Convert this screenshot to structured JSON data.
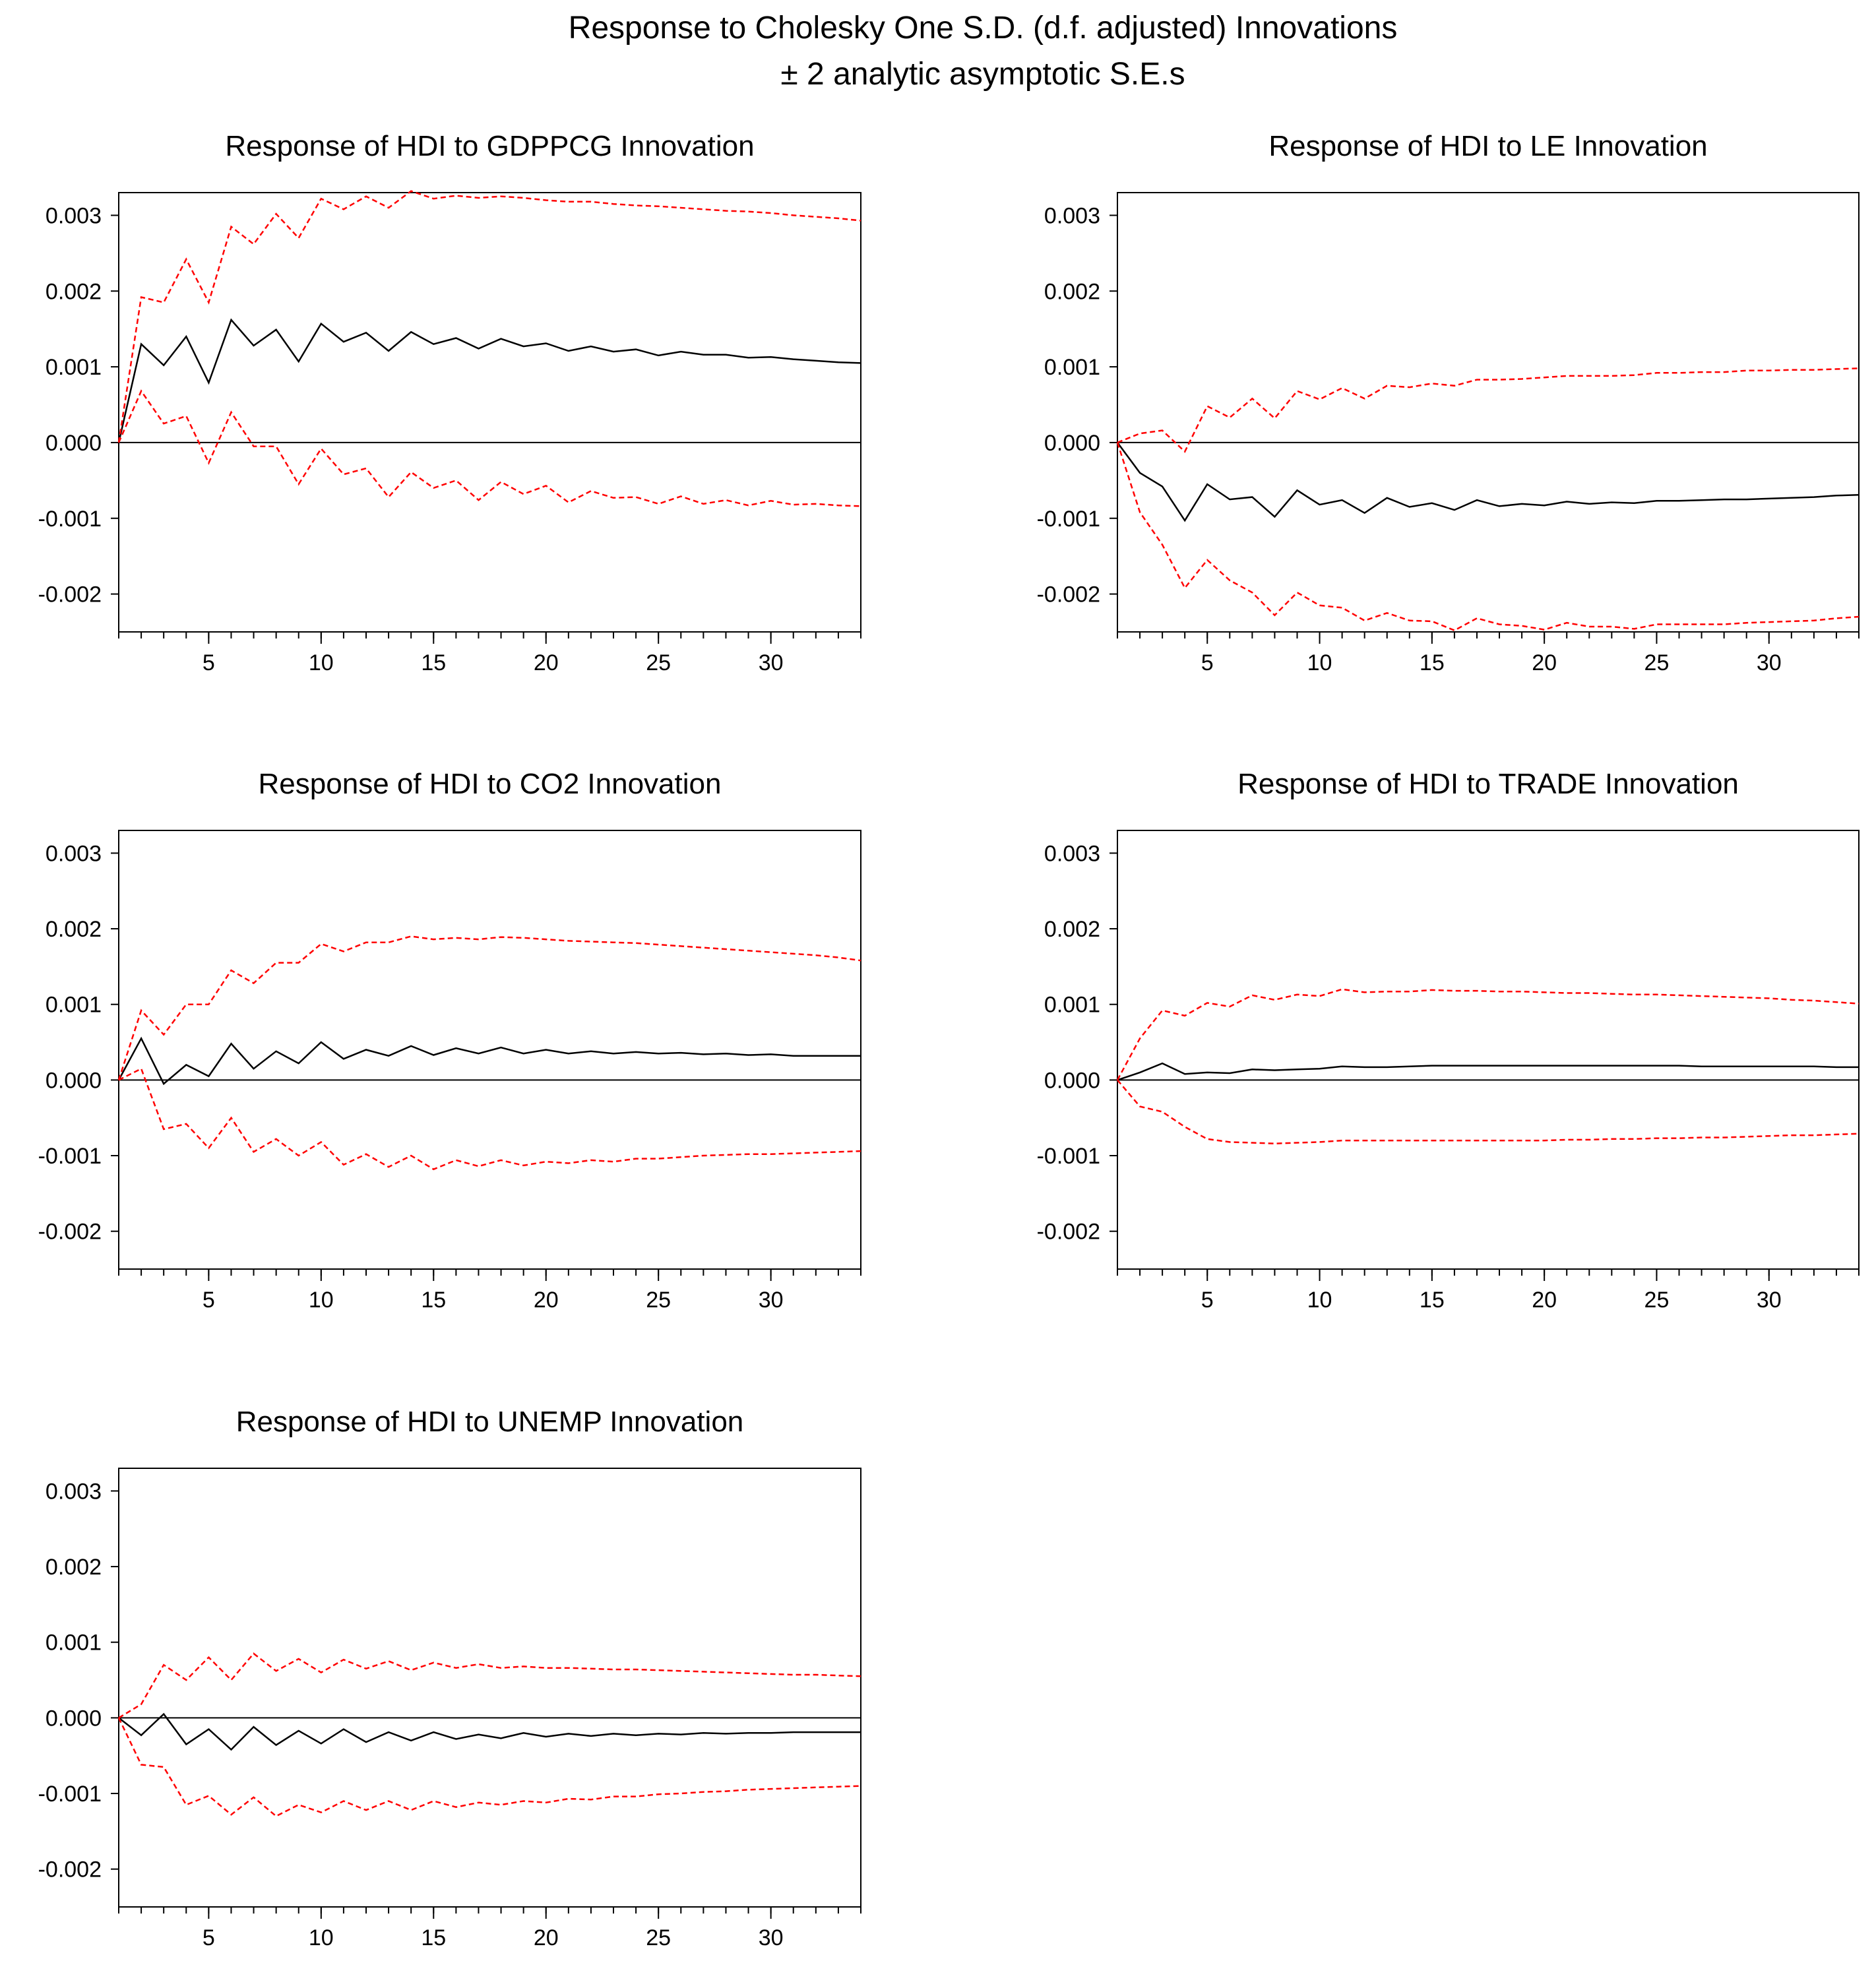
{
  "figure": {
    "title_line1": "Response to Cholesky One S.D. (d.f. adjusted) Innovations",
    "title_line2": "± 2 analytic asymptotic S.E.s"
  },
  "colors": {
    "response": "#000000",
    "bands": "#ff0000",
    "frame": "#000000"
  },
  "chart_data": [
    {
      "type": "line",
      "title": "Response of HDI to GDPPCG Innovation",
      "xlabel": "",
      "ylabel": "",
      "xlim": [
        1,
        34
      ],
      "ylim": [
        -0.0025,
        0.0033
      ],
      "xticks": [
        "5",
        "10",
        "15",
        "20",
        "25",
        "30"
      ],
      "yticks": [
        "0.003",
        "0.002",
        "0.001",
        "0.000",
        "-0.001",
        "-0.002"
      ],
      "x": [
        1,
        2,
        3,
        4,
        5,
        6,
        7,
        8,
        9,
        10,
        11,
        12,
        13,
        14,
        15,
        16,
        17,
        18,
        19,
        20,
        21,
        22,
        23,
        24,
        25,
        26,
        27,
        28,
        29,
        30,
        31,
        32,
        33,
        34
      ],
      "series": [
        {
          "name": "Response",
          "style": "solid",
          "values": [
            0.0,
            0.0013,
            0.00102,
            0.0014,
            0.00079,
            0.00162,
            0.00128,
            0.00149,
            0.00107,
            0.00157,
            0.00133,
            0.00145,
            0.00121,
            0.00146,
            0.0013,
            0.00138,
            0.00124,
            0.00137,
            0.00127,
            0.00131,
            0.00121,
            0.00127,
            0.0012,
            0.00123,
            0.00115,
            0.0012,
            0.00116,
            0.00116,
            0.00112,
            0.00113,
            0.0011,
            0.00108,
            0.00106,
            0.00105
          ]
        },
        {
          "name": "+2 S.E.",
          "style": "dashed",
          "values": [
            0.0,
            0.00192,
            0.00185,
            0.00242,
            0.00185,
            0.00285,
            0.00262,
            0.00302,
            0.0027,
            0.00322,
            0.00308,
            0.00325,
            0.0031,
            0.00332,
            0.00322,
            0.00326,
            0.00323,
            0.00325,
            0.00323,
            0.0032,
            0.00318,
            0.00318,
            0.00315,
            0.00313,
            0.00312,
            0.0031,
            0.00308,
            0.00306,
            0.00305,
            0.00303,
            0.003,
            0.00298,
            0.00296,
            0.00293
          ]
        },
        {
          "name": "-2 S.E.",
          "style": "dashed",
          "values": [
            0.0,
            0.00068,
            0.00025,
            0.00035,
            -0.00027,
            0.0004,
            -5e-05,
            -5e-05,
            -0.00055,
            -8e-05,
            -0.00042,
            -0.00034,
            -0.00072,
            -0.00039,
            -0.0006,
            -0.0005,
            -0.00076,
            -0.00052,
            -0.00068,
            -0.00057,
            -0.00079,
            -0.00064,
            -0.00073,
            -0.00072,
            -0.00081,
            -0.00071,
            -0.00081,
            -0.00076,
            -0.00083,
            -0.00077,
            -0.00082,
            -0.00081,
            -0.00083,
            -0.00084
          ]
        }
      ]
    },
    {
      "type": "line",
      "title": "Response of HDI to LE Innovation",
      "xlabel": "",
      "ylabel": "",
      "xlim": [
        1,
        34
      ],
      "ylim": [
        -0.0025,
        0.0033
      ],
      "xticks": [
        "5",
        "10",
        "15",
        "20",
        "25",
        "30"
      ],
      "yticks": [
        "0.003",
        "0.002",
        "0.001",
        "0.000",
        "-0.001",
        "-0.002"
      ],
      "x": [
        1,
        2,
        3,
        4,
        5,
        6,
        7,
        8,
        9,
        10,
        11,
        12,
        13,
        14,
        15,
        16,
        17,
        18,
        19,
        20,
        21,
        22,
        23,
        24,
        25,
        26,
        27,
        28,
        29,
        30,
        31,
        32,
        33,
        34
      ],
      "series": [
        {
          "name": "Response",
          "style": "solid",
          "values": [
            0.0,
            -0.0004,
            -0.00058,
            -0.00103,
            -0.00055,
            -0.00075,
            -0.00072,
            -0.00098,
            -0.00063,
            -0.00082,
            -0.00076,
            -0.00093,
            -0.00073,
            -0.00085,
            -0.0008,
            -0.00089,
            -0.00076,
            -0.00084,
            -0.00081,
            -0.00083,
            -0.00078,
            -0.00081,
            -0.00079,
            -0.0008,
            -0.00077,
            -0.00077,
            -0.00076,
            -0.00075,
            -0.00075,
            -0.00074,
            -0.00073,
            -0.00072,
            -0.0007,
            -0.00069
          ]
        },
        {
          "name": "+2 S.E.",
          "style": "dashed",
          "values": [
            0.0,
            0.00012,
            0.00016,
            -0.00012,
            0.00048,
            0.00033,
            0.00058,
            0.00032,
            0.00068,
            0.00057,
            0.00072,
            0.00058,
            0.00075,
            0.00073,
            0.00078,
            0.00075,
            0.00083,
            0.00083,
            0.00084,
            0.00086,
            0.00088,
            0.00088,
            0.00088,
            0.00089,
            0.00092,
            0.00092,
            0.00093,
            0.00093,
            0.00095,
            0.00095,
            0.00096,
            0.00096,
            0.00097,
            0.00098
          ]
        },
        {
          "name": "-2 S.E.",
          "style": "dashed",
          "values": [
            0.0,
            -0.00092,
            -0.00135,
            -0.00192,
            -0.00155,
            -0.00182,
            -0.00198,
            -0.00228,
            -0.00198,
            -0.00215,
            -0.00218,
            -0.00235,
            -0.00225,
            -0.00235,
            -0.00236,
            -0.00248,
            -0.00232,
            -0.0024,
            -0.00242,
            -0.00247,
            -0.00238,
            -0.00243,
            -0.00243,
            -0.00246,
            -0.0024,
            -0.0024,
            -0.0024,
            -0.0024,
            -0.00238,
            -0.00237,
            -0.00236,
            -0.00235,
            -0.00232,
            -0.0023
          ]
        }
      ]
    },
    {
      "type": "line",
      "title": "Response of HDI to CO2 Innovation",
      "xlabel": "",
      "ylabel": "",
      "xlim": [
        1,
        34
      ],
      "ylim": [
        -0.0025,
        0.0033
      ],
      "xticks": [
        "5",
        "10",
        "15",
        "20",
        "25",
        "30"
      ],
      "yticks": [
        "0.003",
        "0.002",
        "0.001",
        "0.000",
        "-0.001",
        "-0.002"
      ],
      "x": [
        1,
        2,
        3,
        4,
        5,
        6,
        7,
        8,
        9,
        10,
        11,
        12,
        13,
        14,
        15,
        16,
        17,
        18,
        19,
        20,
        21,
        22,
        23,
        24,
        25,
        26,
        27,
        28,
        29,
        30,
        31,
        32,
        33,
        34
      ],
      "series": [
        {
          "name": "Response",
          "style": "solid",
          "values": [
            0.0,
            0.00055,
            -5e-05,
            0.0002,
            5e-05,
            0.00048,
            0.00015,
            0.00038,
            0.00022,
            0.0005,
            0.00028,
            0.0004,
            0.00032,
            0.00045,
            0.00033,
            0.00042,
            0.00035,
            0.00043,
            0.00035,
            0.0004,
            0.00035,
            0.00038,
            0.00035,
            0.00037,
            0.00035,
            0.00036,
            0.00034,
            0.00035,
            0.00033,
            0.00034,
            0.00032,
            0.00032,
            0.00032,
            0.00032
          ]
        },
        {
          "name": "+2 S.E.",
          "style": "dashed",
          "values": [
            0.0,
            0.00092,
            0.0006,
            0.001,
            0.001,
            0.00145,
            0.00128,
            0.00155,
            0.00155,
            0.0018,
            0.0017,
            0.00182,
            0.00182,
            0.0019,
            0.00186,
            0.00188,
            0.00186,
            0.00189,
            0.00188,
            0.00186,
            0.00184,
            0.00183,
            0.00182,
            0.00181,
            0.00179,
            0.00177,
            0.00175,
            0.00173,
            0.00171,
            0.00169,
            0.00167,
            0.00165,
            0.00162,
            0.00158
          ]
        },
        {
          "name": "-2 S.E.",
          "style": "dashed",
          "values": [
            0.0,
            0.00015,
            -0.00065,
            -0.00058,
            -0.0009,
            -0.0005,
            -0.00095,
            -0.00078,
            -0.001,
            -0.00082,
            -0.00112,
            -0.00098,
            -0.00115,
            -0.001,
            -0.00118,
            -0.00106,
            -0.00114,
            -0.00106,
            -0.00113,
            -0.00108,
            -0.0011,
            -0.00106,
            -0.00108,
            -0.00104,
            -0.00104,
            -0.00102,
            -0.001,
            -0.00099,
            -0.00098,
            -0.00098,
            -0.00097,
            -0.00096,
            -0.00095,
            -0.00094
          ]
        }
      ]
    },
    {
      "type": "line",
      "title": "Response of HDI to TRADE Innovation",
      "xlabel": "",
      "ylabel": "",
      "xlim": [
        1,
        34
      ],
      "ylim": [
        -0.0025,
        0.0033
      ],
      "xticks": [
        "5",
        "10",
        "15",
        "20",
        "25",
        "30"
      ],
      "yticks": [
        "0.003",
        "0.002",
        "0.001",
        "0.000",
        "-0.001",
        "-0.002"
      ],
      "x": [
        1,
        2,
        3,
        4,
        5,
        6,
        7,
        8,
        9,
        10,
        11,
        12,
        13,
        14,
        15,
        16,
        17,
        18,
        19,
        20,
        21,
        22,
        23,
        24,
        25,
        26,
        27,
        28,
        29,
        30,
        31,
        32,
        33,
        34
      ],
      "series": [
        {
          "name": "Response",
          "style": "solid",
          "values": [
            0.0,
            0.0001,
            0.00022,
            8e-05,
            0.0001,
            9e-05,
            0.00014,
            0.00013,
            0.00014,
            0.00015,
            0.00018,
            0.00017,
            0.00017,
            0.00018,
            0.00019,
            0.00019,
            0.00019,
            0.00019,
            0.00019,
            0.00019,
            0.00019,
            0.00019,
            0.00019,
            0.00019,
            0.00019,
            0.00019,
            0.00018,
            0.00018,
            0.00018,
            0.00018,
            0.00018,
            0.00018,
            0.00017,
            0.00017
          ]
        },
        {
          "name": "+2 S.E.",
          "style": "dashed",
          "values": [
            0.0,
            0.00055,
            0.00092,
            0.00085,
            0.00102,
            0.00097,
            0.00112,
            0.00106,
            0.00113,
            0.00111,
            0.0012,
            0.00116,
            0.00117,
            0.00117,
            0.00119,
            0.00118,
            0.00118,
            0.00117,
            0.00117,
            0.00116,
            0.00115,
            0.00115,
            0.00114,
            0.00113,
            0.00113,
            0.00112,
            0.00111,
            0.0011,
            0.00109,
            0.00108,
            0.00106,
            0.00105,
            0.00103,
            0.00101
          ]
        },
        {
          "name": "-2 S.E.",
          "style": "dashed",
          "values": [
            0.0,
            -0.00035,
            -0.00042,
            -0.00062,
            -0.00078,
            -0.00082,
            -0.00083,
            -0.00084,
            -0.00083,
            -0.00082,
            -0.0008,
            -0.0008,
            -0.0008,
            -0.0008,
            -0.0008,
            -0.0008,
            -0.0008,
            -0.0008,
            -0.0008,
            -0.0008,
            -0.00079,
            -0.00079,
            -0.00078,
            -0.00078,
            -0.00077,
            -0.00077,
            -0.00076,
            -0.00076,
            -0.00075,
            -0.00074,
            -0.00073,
            -0.00073,
            -0.00072,
            -0.00071
          ]
        }
      ]
    },
    {
      "type": "line",
      "title": "Response of HDI to UNEMP Innovation",
      "xlabel": "",
      "ylabel": "",
      "xlim": [
        1,
        34
      ],
      "ylim": [
        -0.0025,
        0.0033
      ],
      "xticks": [
        "5",
        "10",
        "15",
        "20",
        "25",
        "30"
      ],
      "yticks": [
        "0.003",
        "0.002",
        "0.001",
        "0.000",
        "-0.001",
        "-0.002"
      ],
      "x": [
        1,
        2,
        3,
        4,
        5,
        6,
        7,
        8,
        9,
        10,
        11,
        12,
        13,
        14,
        15,
        16,
        17,
        18,
        19,
        20,
        21,
        22,
        23,
        24,
        25,
        26,
        27,
        28,
        29,
        30,
        31,
        32,
        33,
        34
      ],
      "series": [
        {
          "name": "Response",
          "style": "solid",
          "values": [
            0.0,
            -0.00023,
            5e-05,
            -0.00035,
            -0.00015,
            -0.00042,
            -0.00012,
            -0.00036,
            -0.00017,
            -0.00034,
            -0.00015,
            -0.00032,
            -0.00019,
            -0.0003,
            -0.00019,
            -0.00028,
            -0.00022,
            -0.00027,
            -0.0002,
            -0.00025,
            -0.00021,
            -0.00024,
            -0.00021,
            -0.00023,
            -0.00021,
            -0.00022,
            -0.0002,
            -0.00021,
            -0.0002,
            -0.0002,
            -0.00019,
            -0.00019,
            -0.00019,
            -0.00019
          ]
        },
        {
          "name": "+2 S.E.",
          "style": "dashed",
          "values": [
            0.0,
            0.00018,
            0.0007,
            0.0005,
            0.0008,
            0.0005,
            0.00085,
            0.00062,
            0.00078,
            0.0006,
            0.00077,
            0.00065,
            0.00075,
            0.00063,
            0.00073,
            0.00066,
            0.00071,
            0.00066,
            0.00068,
            0.00066,
            0.00066,
            0.00065,
            0.00064,
            0.00064,
            0.00063,
            0.00062,
            0.00061,
            0.0006,
            0.00059,
            0.00058,
            0.00057,
            0.00057,
            0.00056,
            0.00055
          ]
        },
        {
          "name": "-2 S.E.",
          "style": "dashed",
          "values": [
            0.0,
            -0.00062,
            -0.00065,
            -0.00115,
            -0.00103,
            -0.00128,
            -0.00105,
            -0.0013,
            -0.00115,
            -0.00125,
            -0.0011,
            -0.00122,
            -0.0011,
            -0.00122,
            -0.0011,
            -0.00118,
            -0.00112,
            -0.00115,
            -0.0011,
            -0.00112,
            -0.00107,
            -0.00108,
            -0.00104,
            -0.00104,
            -0.00101,
            -0.001,
            -0.00098,
            -0.00097,
            -0.00095,
            -0.00094,
            -0.00093,
            -0.00092,
            -0.00091,
            -0.0009
          ]
        }
      ]
    }
  ]
}
